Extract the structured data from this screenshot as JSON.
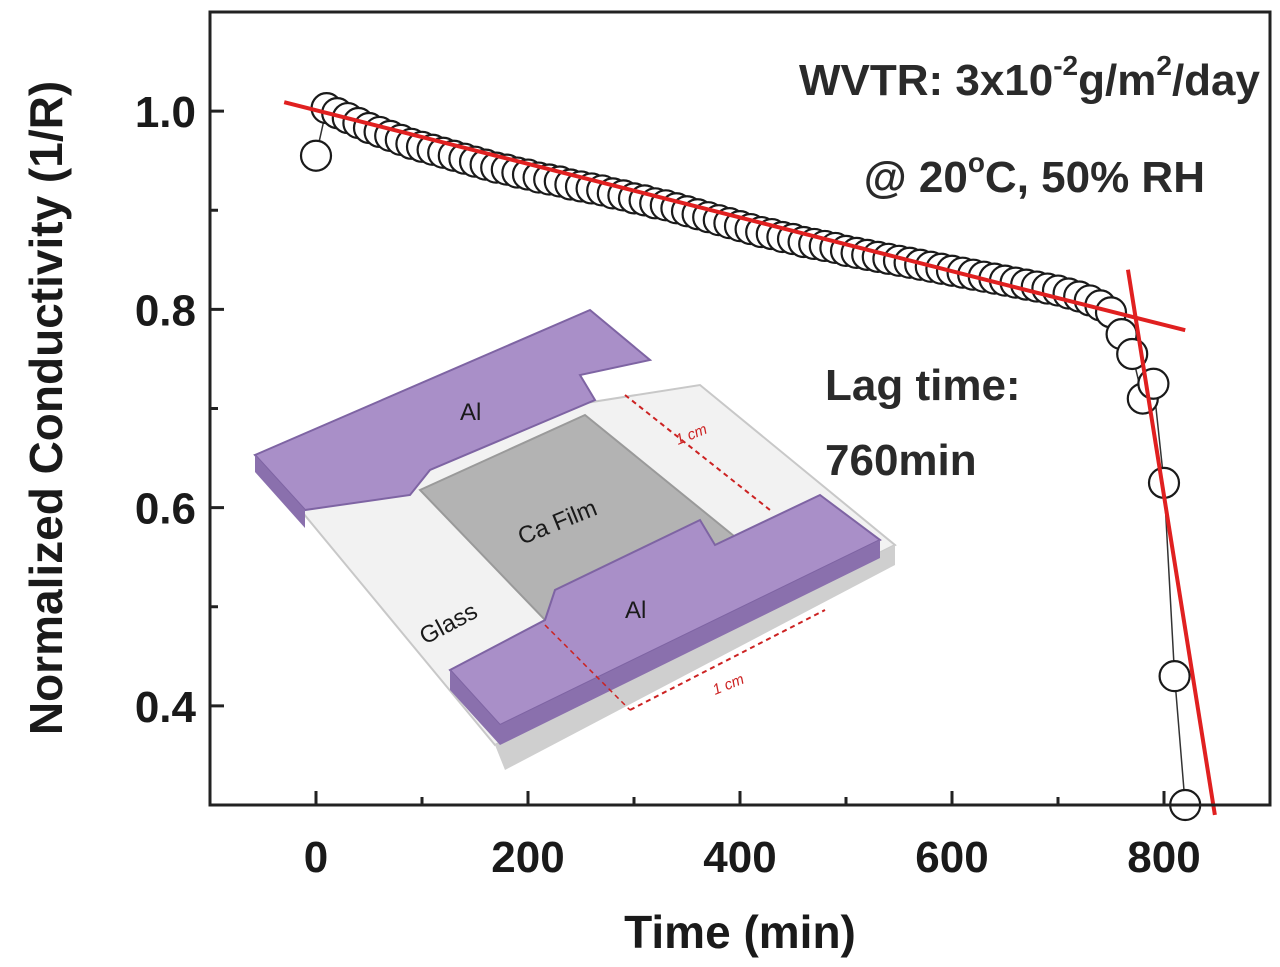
{
  "chart_data": {
    "type": "scatter",
    "xlabel": "Time (min)",
    "ylabel": "Normalized Conductivity (1/R)",
    "xlim": [
      -100,
      900
    ],
    "ylim": [
      0.3,
      1.1
    ],
    "xticks": [
      0,
      200,
      400,
      600,
      800
    ],
    "yticks": [
      0.4,
      0.6,
      0.8,
      1.0
    ],
    "xtick_labels": [
      "0",
      "200",
      "400",
      "600",
      "800"
    ],
    "ytick_labels": [
      "0.4",
      "0.6",
      "0.8",
      "1.0"
    ],
    "series": [
      {
        "marker": "open-circle",
        "x": [
          0,
          10,
          20,
          30,
          40,
          50,
          60,
          70,
          80,
          90,
          100,
          110,
          120,
          130,
          140,
          150,
          160,
          170,
          180,
          190,
          200,
          210,
          220,
          230,
          240,
          250,
          260,
          270,
          280,
          290,
          300,
          310,
          320,
          330,
          340,
          350,
          360,
          370,
          380,
          390,
          400,
          410,
          420,
          430,
          440,
          450,
          460,
          470,
          480,
          490,
          500,
          510,
          520,
          530,
          540,
          550,
          560,
          570,
          580,
          590,
          600,
          610,
          620,
          630,
          640,
          650,
          660,
          670,
          680,
          690,
          700,
          710,
          720,
          730,
          740,
          750,
          760,
          770,
          780,
          790,
          800,
          810,
          820
        ],
        "y": [
          0.955,
          1.003,
          0.998,
          0.993,
          0.988,
          0.983,
          0.979,
          0.975,
          0.971,
          0.967,
          0.964,
          0.961,
          0.958,
          0.955,
          0.952,
          0.949,
          0.946,
          0.943,
          0.941,
          0.938,
          0.936,
          0.933,
          0.931,
          0.929,
          0.926,
          0.924,
          0.922,
          0.92,
          0.917,
          0.915,
          0.912,
          0.91,
          0.907,
          0.905,
          0.902,
          0.899,
          0.896,
          0.893,
          0.89,
          0.887,
          0.884,
          0.881,
          0.878,
          0.876,
          0.873,
          0.871,
          0.868,
          0.866,
          0.864,
          0.862,
          0.859,
          0.857,
          0.855,
          0.853,
          0.851,
          0.849,
          0.847,
          0.845,
          0.843,
          0.841,
          0.839,
          0.837,
          0.835,
          0.833,
          0.831,
          0.829,
          0.827,
          0.825,
          0.823,
          0.821,
          0.819,
          0.816,
          0.813,
          0.809,
          0.804,
          0.797,
          0.775,
          0.755,
          0.71,
          0.725,
          0.625,
          0.43,
          0.3
        ]
      }
    ],
    "fit_lines": [
      {
        "color": "#e02020",
        "x": [
          -30,
          820
        ],
        "y": [
          1.009,
          0.779
        ]
      },
      {
        "color": "#e02020",
        "x": [
          766,
          848
        ],
        "y": [
          0.84,
          0.29
        ]
      }
    ],
    "annotations": {
      "wvtr_prefix": "WVTR: 3x10",
      "wvtr_exp1": "-2",
      "wvtr_mid": "g/m",
      "wvtr_exp2": "2",
      "wvtr_suffix": "/day",
      "cond_prefix": "@ 20",
      "cond_sup": "o",
      "cond_suffix": "C, 50% RH",
      "lag_line1": "Lag time:",
      "lag_line2": "760min"
    },
    "inset": {
      "label_al_top": "Al",
      "label_al_bottom": "Al",
      "label_ca": "Ca Film",
      "label_glass": "Glass",
      "dim_right": "1 cm",
      "dim_bottom": "1 cm",
      "colors": {
        "electrode": "#a58ac4",
        "electrode_edge": "#7e64a3",
        "film": "#b4b4b4",
        "glass": "#f0f0f0"
      }
    }
  }
}
